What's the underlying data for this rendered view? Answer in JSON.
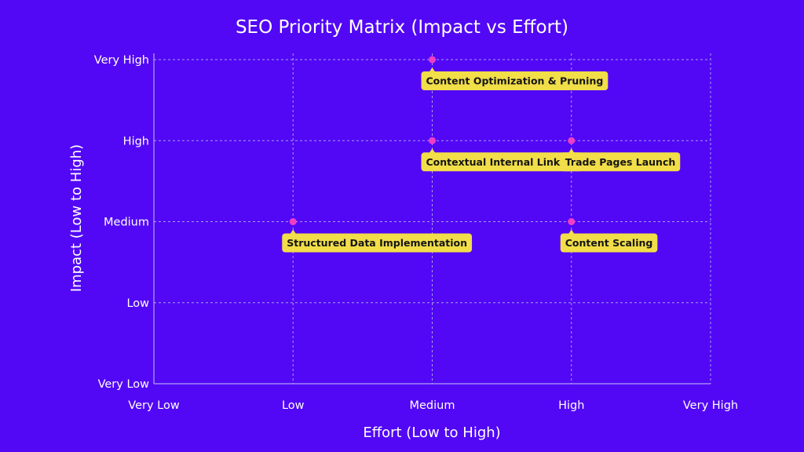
{
  "chart_data": {
    "type": "scatter",
    "title": "SEO Priority Matrix (Impact vs Effort)",
    "xlabel": "Effort (Low to High)",
    "ylabel": "Impact (Low to High)",
    "x_categories": [
      "Very Low",
      "Low",
      "Medium",
      "High",
      "Very High"
    ],
    "y_categories": [
      "Very Low",
      "Low",
      "Medium",
      "High",
      "Very High"
    ],
    "grid": true,
    "colors": {
      "background": "#5208F5",
      "point": "#F03DC5",
      "label_bg": "#F1DE48",
      "label_text": "#151515",
      "grid": "#A89CF0"
    },
    "points": [
      {
        "label": "Content Optimization & Pruning",
        "x": "Medium",
        "y": "Very High"
      },
      {
        "label": "Contextual Internal Linking",
        "x": "Medium",
        "y": "High"
      },
      {
        "label": "Trade Pages Launch",
        "x": "High",
        "y": "High"
      },
      {
        "label": "Structured Data Implementation",
        "x": "Low",
        "y": "Medium"
      },
      {
        "label": "Content Scaling",
        "x": "High",
        "y": "Medium"
      }
    ]
  }
}
